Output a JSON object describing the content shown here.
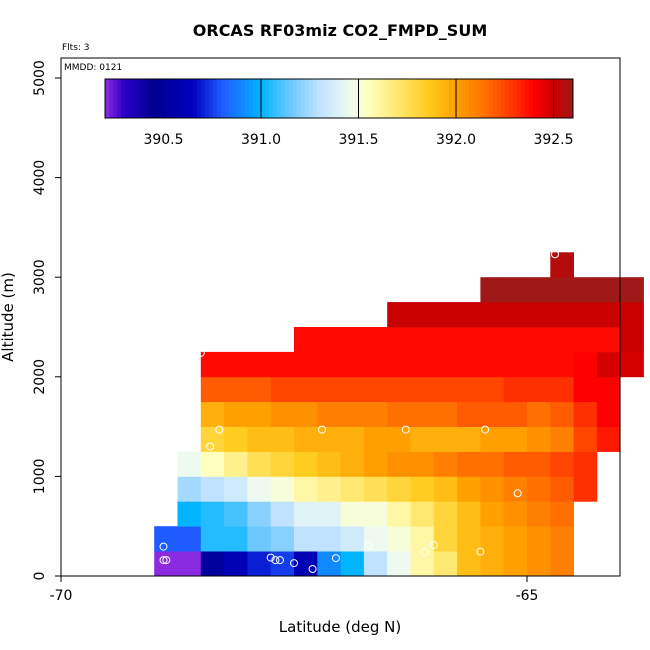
{
  "chart_data": {
    "type": "heatmap",
    "title": "ORCAS RF03miz CO2_FMPD_SUM",
    "xlabel": "Latitude (deg N)",
    "ylabel": "Altitude (m)",
    "annotation_flts": "Flts: 3",
    "annotation_mmdd": "MMDD: 0121",
    "xlim": [
      -70,
      -64.05
    ],
    "ylim": [
      0,
      5200
    ],
    "x_ticks": [
      {
        "v": -70,
        "t": "-70"
      },
      {
        "v": -65,
        "t": "-65"
      }
    ],
    "y_ticks": [
      {
        "v": 0,
        "t": "0"
      },
      {
        "v": 1000,
        "t": "1000"
      },
      {
        "v": 2000,
        "t": "2000"
      },
      {
        "v": 3000,
        "t": "3000"
      },
      {
        "v": 4000,
        "t": "4000"
      },
      {
        "v": 5000,
        "t": "5000"
      }
    ],
    "colorbar": {
      "min": 390.2,
      "max": 392.6,
      "ticks": [
        {
          "v": 390.5,
          "t": "390.5"
        },
        {
          "v": 391.0,
          "t": "391.0"
        },
        {
          "v": 391.5,
          "t": "391.5"
        },
        {
          "v": 392.0,
          "t": "392.0"
        },
        {
          "v": 392.5,
          "t": "392.5"
        }
      ],
      "stops": [
        {
          "v": 390.2,
          "c": "#8a2be2"
        },
        {
          "v": 390.3,
          "c": "#2a00c8"
        },
        {
          "v": 390.45,
          "c": "#000090"
        },
        {
          "v": 390.65,
          "c": "#0000c0"
        },
        {
          "v": 390.8,
          "c": "#1f5cff"
        },
        {
          "v": 391.0,
          "c": "#00b4ff"
        },
        {
          "v": 391.15,
          "c": "#6cc8ff"
        },
        {
          "v": 391.3,
          "c": "#c0e2ff"
        },
        {
          "v": 391.45,
          "c": "#eefaf0"
        },
        {
          "v": 391.55,
          "c": "#ffffc0"
        },
        {
          "v": 391.7,
          "c": "#ffe870"
        },
        {
          "v": 391.85,
          "c": "#ffcc20"
        },
        {
          "v": 392.0,
          "c": "#ffa000"
        },
        {
          "v": 392.15,
          "c": "#ff7000"
        },
        {
          "v": 392.3,
          "c": "#ff3000"
        },
        {
          "v": 392.4,
          "c": "#ff0000"
        },
        {
          "v": 392.5,
          "c": "#c80000"
        },
        {
          "v": 392.6,
          "c": "#a01818"
        }
      ]
    },
    "cell_width_deg": 0.25,
    "cell_height_m": 250,
    "rows": [
      {
        "alt": 0,
        "x0": -69.0,
        "values": [
          390.2,
          390.2,
          390.5,
          390.6,
          390.7,
          390.75,
          390.6,
          390.9,
          391.0,
          391.3,
          391.45,
          391.6,
          391.7,
          391.9,
          391.95,
          392.0,
          392.05,
          392.1
        ]
      },
      {
        "alt": 250,
        "x0": -69.0,
        "values": [
          390.8,
          390.8,
          391.05,
          391.05,
          391.15,
          391.2,
          391.3,
          391.3,
          391.35,
          391.45,
          391.5,
          391.6,
          391.8,
          391.9,
          391.95,
          392.0,
          392.05,
          392.1
        ]
      },
      {
        "alt": 500,
        "x0": -68.75,
        "values": [
          391.0,
          391.05,
          391.1,
          391.2,
          391.3,
          391.4,
          391.4,
          391.5,
          391.5,
          391.6,
          391.7,
          391.8,
          391.9,
          392.0,
          392.05,
          392.1,
          392.15
        ]
      },
      {
        "alt": 750,
        "x0": -68.75,
        "values": [
          391.25,
          391.3,
          391.35,
          391.45,
          391.5,
          391.6,
          391.65,
          391.7,
          391.75,
          391.8,
          391.85,
          391.9,
          392.0,
          392.05,
          392.1,
          392.15,
          392.2,
          392.3
        ]
      },
      {
        "alt": 1000,
        "x0": -68.75,
        "values": [
          391.45,
          391.55,
          391.65,
          391.75,
          391.8,
          391.85,
          391.9,
          391.95,
          392.0,
          392.05,
          392.05,
          392.1,
          392.15,
          392.15,
          392.2,
          392.2,
          392.25,
          392.3
        ]
      },
      {
        "alt": 1250,
        "x0": -68.5,
        "values": [
          391.8,
          391.85,
          391.9,
          391.9,
          391.95,
          391.95,
          391.95,
          392.0,
          392.0,
          391.95,
          391.95,
          391.95,
          392.0,
          392.0,
          392.05,
          392.1,
          392.25,
          392.35
        ]
      },
      {
        "alt": 1500,
        "x0": -68.5,
        "values": [
          391.95,
          392.0,
          392.0,
          392.05,
          392.05,
          392.1,
          392.1,
          392.1,
          392.15,
          392.15,
          392.15,
          392.2,
          392.2,
          392.2,
          392.15,
          392.2,
          392.3,
          392.4
        ]
      },
      {
        "alt": 1750,
        "x0": -68.5,
        "values": [
          392.2,
          392.2,
          392.2,
          392.25,
          392.25,
          392.25,
          392.25,
          392.25,
          392.25,
          392.25,
          392.25,
          392.25,
          392.25,
          392.3,
          392.3,
          392.3,
          392.4,
          392.4
        ]
      },
      {
        "alt": 2000,
        "x0": -68.5,
        "values": [
          392.38,
          392.38,
          392.38,
          392.38,
          392.38,
          392.38,
          392.38,
          392.38,
          392.38,
          392.38,
          392.38,
          392.38,
          392.38,
          392.38,
          392.38,
          392.38,
          392.4,
          392.48,
          392.48
        ]
      },
      {
        "alt": 2250,
        "x0": -67.5,
        "values": [
          392.38,
          392.38,
          392.38,
          392.38,
          392.38,
          392.38,
          392.38,
          392.38,
          392.38,
          392.38,
          392.38,
          392.38,
          392.38,
          392.38,
          392.5
        ]
      },
      {
        "alt": 2500,
        "x0": -66.5,
        "values": [
          392.5,
          392.5,
          392.5,
          392.5,
          392.5,
          392.5,
          392.5,
          392.5,
          392.5,
          392.5,
          392.5
        ]
      },
      {
        "alt": 2750,
        "x0": -65.5,
        "values": [
          392.6,
          392.6,
          392.6,
          392.6,
          392.6,
          392.6,
          392.6
        ]
      },
      {
        "alt": 3000,
        "x0": -64.75,
        "values": [
          392.55
        ]
      }
    ],
    "samples": [
      {
        "lat": -68.9,
        "alt": 160
      },
      {
        "lat": -68.87,
        "alt": 160
      },
      {
        "lat": -68.9,
        "alt": 295
      },
      {
        "lat": -67.75,
        "alt": 185
      },
      {
        "lat": -67.7,
        "alt": 160
      },
      {
        "lat": -67.65,
        "alt": 160
      },
      {
        "lat": -67.5,
        "alt": 130
      },
      {
        "lat": -67.3,
        "alt": 70
      },
      {
        "lat": -67.05,
        "alt": 180
      },
      {
        "lat": -66.7,
        "alt": 310
      },
      {
        "lat": -66.1,
        "alt": 240
      },
      {
        "lat": -66.0,
        "alt": 310
      },
      {
        "lat": -65.5,
        "alt": 245
      },
      {
        "lat": -65.1,
        "alt": 830
      },
      {
        "lat": -68.4,
        "alt": 1300
      },
      {
        "lat": -68.3,
        "alt": 1470
      },
      {
        "lat": -67.2,
        "alt": 1470
      },
      {
        "lat": -66.3,
        "alt": 1470
      },
      {
        "lat": -65.45,
        "alt": 1470
      },
      {
        "lat": -68.5,
        "alt": 2240
      },
      {
        "lat": -64.7,
        "alt": 3230
      }
    ]
  }
}
